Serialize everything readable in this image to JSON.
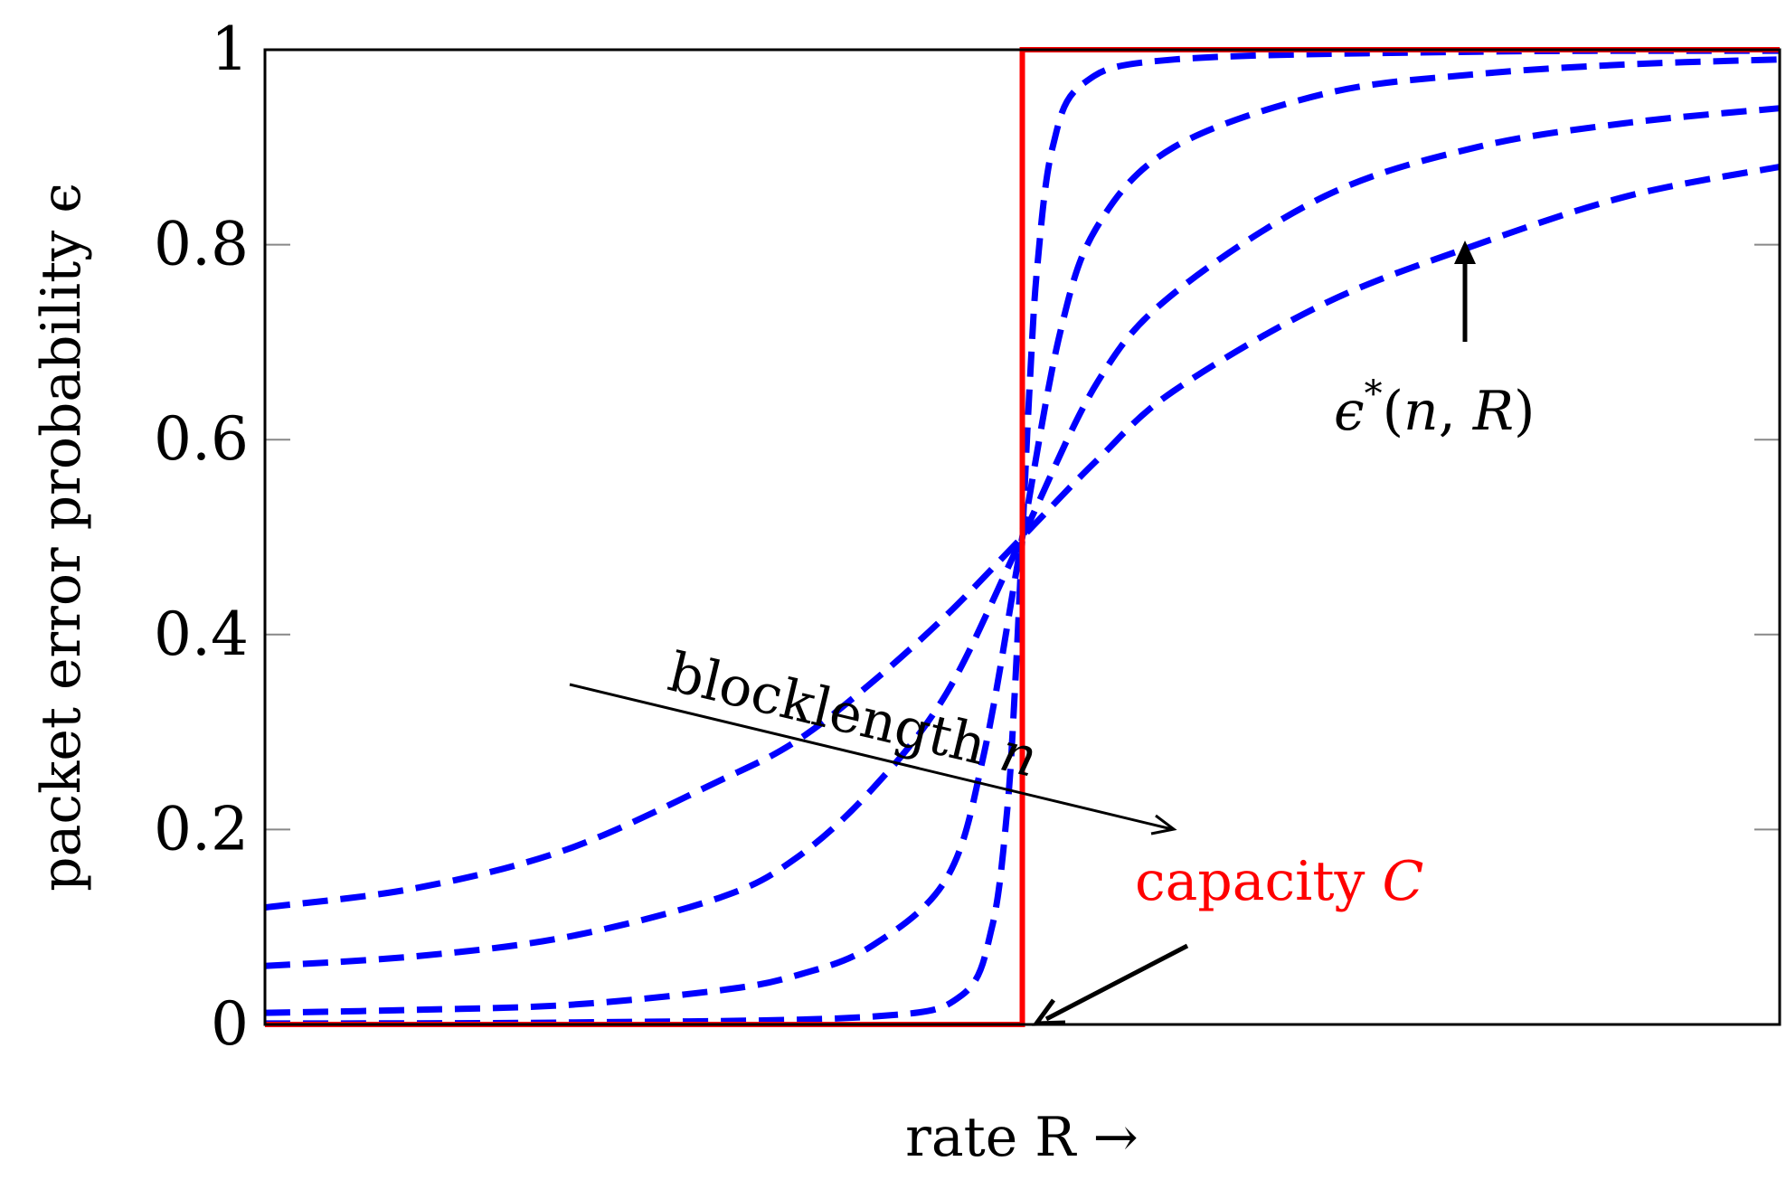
{
  "chart_data": {
    "type": "line",
    "title": "",
    "xlabel": "rate R →",
    "ylabel": "packet error probability ϵ",
    "xlim": [
      0,
      2
    ],
    "ylim": [
      0,
      1
    ],
    "x_ticks": [],
    "y_ticks": [
      {
        "value": 0,
        "label": "0"
      },
      {
        "value": 0.2,
        "label": "0.2"
      },
      {
        "value": 0.4,
        "label": "0.4"
      },
      {
        "value": 0.6,
        "label": "0.6"
      },
      {
        "value": 0.8,
        "label": "0.8"
      },
      {
        "value": 1,
        "label": "1"
      }
    ],
    "grid": false,
    "legend": "none",
    "capacity_x": 1,
    "series": [
      {
        "style": "dashed",
        "color": "#0000ff",
        "x": [
          0,
          0.2,
          0.4,
          0.6,
          0.7,
          0.8,
          0.9,
          1.0,
          1.1,
          1.2,
          1.4,
          1.6,
          1.8,
          2.0
        ],
        "values": [
          0.12,
          0.14,
          0.18,
          0.25,
          0.29,
          0.35,
          0.42,
          0.5,
          0.58,
          0.65,
          0.74,
          0.8,
          0.85,
          0.88
        ]
      },
      {
        "style": "dashed",
        "color": "#0000ff",
        "x": [
          0,
          0.2,
          0.4,
          0.6,
          0.7,
          0.8,
          0.9,
          1.0,
          1.1,
          1.2,
          1.4,
          1.6,
          1.8,
          2.0
        ],
        "values": [
          0.06,
          0.07,
          0.09,
          0.13,
          0.17,
          0.24,
          0.34,
          0.5,
          0.66,
          0.75,
          0.85,
          0.9,
          0.925,
          0.94
        ]
      },
      {
        "style": "dashed",
        "color": "#0000ff",
        "x": [
          0,
          0.2,
          0.4,
          0.6,
          0.7,
          0.8,
          0.9,
          0.95,
          1.0,
          1.05,
          1.1,
          1.2,
          1.4,
          1.6,
          1.8,
          2.0
        ],
        "values": [
          0.012,
          0.015,
          0.02,
          0.035,
          0.05,
          0.08,
          0.15,
          0.28,
          0.5,
          0.71,
          0.82,
          0.9,
          0.955,
          0.975,
          0.985,
          0.99
        ]
      },
      {
        "style": "dashed",
        "color": "#0000ff",
        "x": [
          0,
          0.4,
          0.8,
          0.92,
          0.96,
          0.98,
          0.99,
          1.0,
          1.01,
          1.02,
          1.04,
          1.08,
          1.2,
          1.6,
          2.0
        ],
        "values": [
          0.001,
          0.002,
          0.008,
          0.03,
          0.1,
          0.22,
          0.34,
          0.5,
          0.66,
          0.78,
          0.9,
          0.965,
          0.99,
          0.998,
          0.999
        ]
      },
      {
        "style": "solid",
        "color": "#ff0000",
        "x": [
          0,
          1,
          1,
          2
        ],
        "values": [
          0,
          0,
          1,
          1
        ]
      }
    ],
    "annotations": {
      "curve_label": {
        "prefix": "ϵ",
        "sup": "*",
        "suffix": "(",
        "n": "n",
        "comma": ", ",
        "R": "R",
        "close": ")"
      },
      "blocklength": {
        "text": "blocklength ",
        "var": "n"
      },
      "capacity": {
        "text": "capacity ",
        "var": "C",
        "color": "#ff0000"
      }
    }
  },
  "colors": {
    "dashed": "#0000ff",
    "step": "#ff0000",
    "axis": "#000000"
  }
}
